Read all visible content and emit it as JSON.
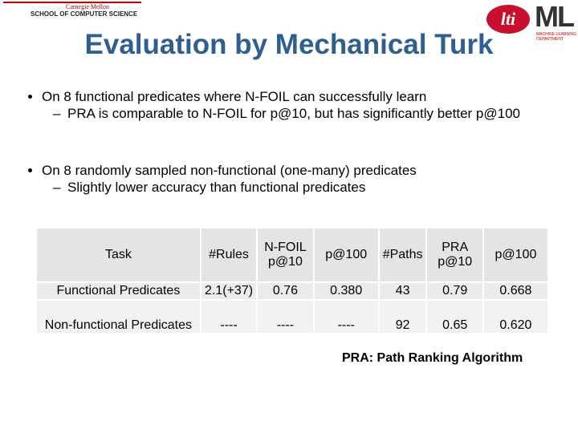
{
  "header": {
    "university": "Carnegie Mellon",
    "school": "SCHOOL OF COMPUTER SCIENCE",
    "logo_lti": "lti",
    "logo_ml": "ML",
    "logo_ml_sub": "MACHINE LEARNING DEPARTMENT"
  },
  "title": "Evaluation by Mechanical Turk",
  "bullets": [
    {
      "text": "On 8 functional predicates where N-FOIL can successfully learn",
      "sub": [
        "PRA is comparable to N-FOIL for p@10, but has significantly better p@100"
      ]
    },
    {
      "text": "On 8 randomly sampled non-functional (one-many) predicates",
      "sub": [
        "Slightly lower accuracy than functional predicates"
      ]
    }
  ],
  "table": {
    "header": [
      "Task",
      "#Rules",
      "N-FOIL p@10",
      "p@100",
      "#Paths",
      "PRA p@10",
      "p@100"
    ],
    "rows": [
      [
        "Functional Predicates",
        "2.1(+37)",
        "0.76",
        "0.380",
        "43",
        "0.79",
        "0.668"
      ],
      [
        "Non-functional Predicates",
        "----",
        "----",
        "----",
        "92",
        "0.65",
        "0.620"
      ]
    ]
  },
  "footnote": "PRA: Path Ranking Algorithm"
}
